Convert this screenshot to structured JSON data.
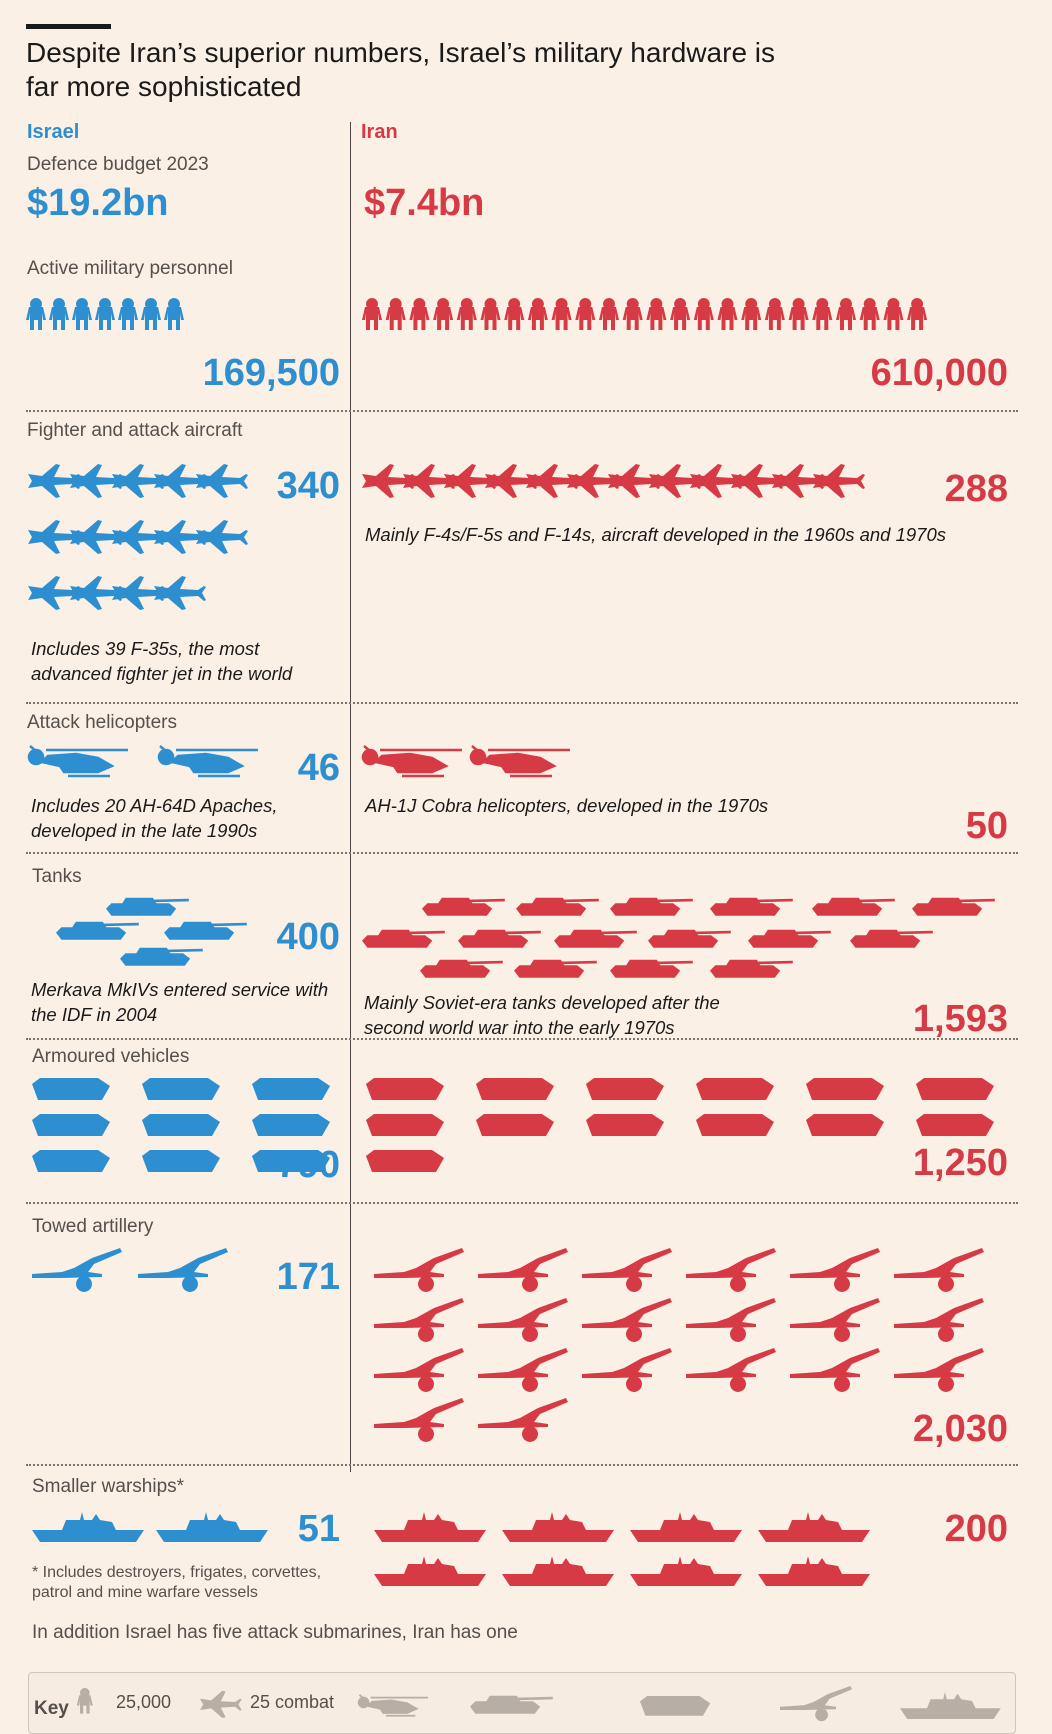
{
  "header": {
    "title": "Despite Iran’s superior numbers, Israel’s military hardware is far more sophisticated",
    "israel_label": "Israel",
    "iran_label": "Iran"
  },
  "colors": {
    "israel": "#2e8fd0",
    "iran": "#d63a44",
    "background": "#fbf0e6",
    "key_grey": "#b7aea6"
  },
  "budget": {
    "label": "Defence budget 2023",
    "israel": "$19.2bn",
    "iran": "$7.4bn"
  },
  "personnel": {
    "label": "Active military personnel",
    "israel": "169,500",
    "iran": "610,000"
  },
  "aircraft": {
    "label": "Fighter and attack aircraft",
    "israel": "340",
    "iran": "288",
    "israel_note": "Includes 39 F-35s, the most advanced fighter jet in the world",
    "iran_note": "Mainly F-4s/F-5s and F-14s, aircraft developed in the 1960s and 1970s"
  },
  "helicopters": {
    "label": "Attack helicopters",
    "israel": "46",
    "iran": "50",
    "israel_note": "Includes 20 AH-64D Apaches, developed in the late 1990s",
    "iran_note": "AH-1J Cobra helicopters, developed in the 1970s"
  },
  "tanks": {
    "label": "Tanks",
    "israel": "400",
    "iran": "1,593",
    "israel_note": "Merkava MkIVs entered service with the IDF in 2004",
    "iran_note": "Mainly Soviet-era tanks developed after the second world war into the early 1970s"
  },
  "armoured": {
    "label": "Armoured vehicles",
    "israel": "790",
    "iran": "1,250"
  },
  "artillery": {
    "label": "Towed artillery",
    "israel": "171",
    "iran": "2,030"
  },
  "warships": {
    "label": "Smaller warships*",
    "israel": "51",
    "iran": "200",
    "footnote": "* Includes destroyers, frigates, corvettes, patrol and mine warfare vessels"
  },
  "additional_note": "In addition Israel has five attack submarines, Iran has one",
  "key": {
    "label": "Key",
    "personnel_unit": "25,000",
    "aircraft_unit": "25 combat"
  },
  "chart_data": {
    "type": "bar",
    "title": "Despite Iran’s superior numbers, Israel’s military hardware is far more sophisticated",
    "categories": [
      "Defence budget 2023",
      "Active military personnel",
      "Fighter and attack aircraft",
      "Attack helicopters",
      "Tanks",
      "Armoured vehicles",
      "Towed artillery",
      "Smaller warships*"
    ],
    "series": [
      {
        "name": "Israel",
        "values": [
          19.2,
          169500,
          340,
          46,
          400,
          790,
          171,
          51
        ]
      },
      {
        "name": "Iran",
        "values": [
          7.4,
          610000,
          288,
          50,
          1593,
          1250,
          2030,
          200
        ]
      }
    ]
  }
}
